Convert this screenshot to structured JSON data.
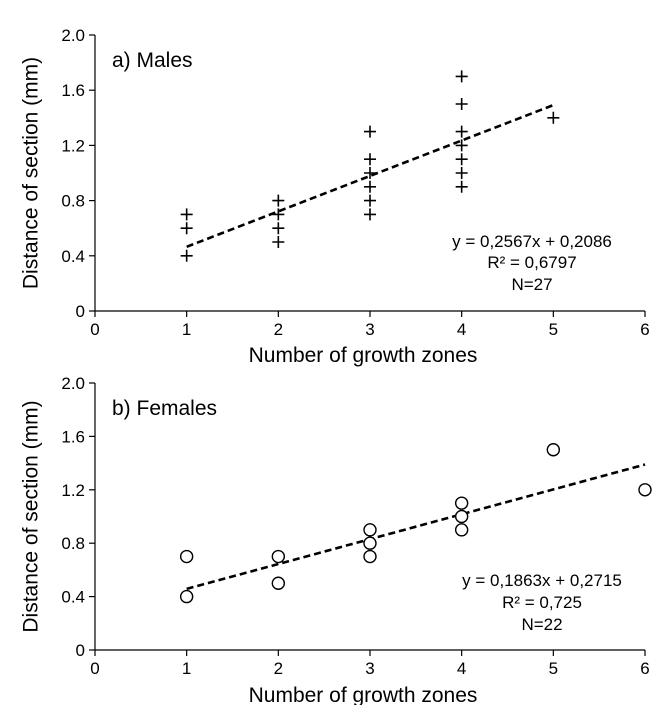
{
  "chart_data": [
    {
      "type": "scatter",
      "panel_label": "a) Males",
      "xlabel": "Number of growth zones",
      "ylabel": "Distance of section (mm)",
      "xlim": [
        0,
        6
      ],
      "ylim": [
        0,
        2.0
      ],
      "x_ticks": [
        "0",
        "1",
        "2",
        "3",
        "4",
        "5",
        "6"
      ],
      "y_ticks": [
        "0",
        "0.4",
        "0.8",
        "1.2",
        "1.6",
        "2.0"
      ],
      "marker": "plus",
      "points": [
        {
          "x": 1,
          "y": 0.4
        },
        {
          "x": 1,
          "y": 0.6
        },
        {
          "x": 1,
          "y": 0.7
        },
        {
          "x": 2,
          "y": 0.5
        },
        {
          "x": 2,
          "y": 0.6
        },
        {
          "x": 2,
          "y": 0.7
        },
        {
          "x": 2,
          "y": 0.8
        },
        {
          "x": 3,
          "y": 0.7
        },
        {
          "x": 3,
          "y": 0.8
        },
        {
          "x": 3,
          "y": 0.9
        },
        {
          "x": 3,
          "y": 1.0
        },
        {
          "x": 3,
          "y": 1.1
        },
        {
          "x": 3,
          "y": 1.3
        },
        {
          "x": 4,
          "y": 0.9
        },
        {
          "x": 4,
          "y": 1.0
        },
        {
          "x": 4,
          "y": 1.1
        },
        {
          "x": 4,
          "y": 1.2
        },
        {
          "x": 4,
          "y": 1.3
        },
        {
          "x": 4,
          "y": 1.5
        },
        {
          "x": 4,
          "y": 1.7
        },
        {
          "x": 5,
          "y": 1.4
        }
      ],
      "trendline": {
        "slope": 0.2567,
        "intercept": 0.2086,
        "x_from": 1,
        "x_to": 5
      },
      "annotations": [
        "y = 0,2567x + 0,2086",
        "R² = 0,6797",
        "N=27"
      ]
    },
    {
      "type": "scatter",
      "panel_label": "b) Females",
      "xlabel": "Number of growth zones",
      "ylabel": "Distance of section (mm)",
      "xlim": [
        0,
        6
      ],
      "ylim": [
        0,
        2.0
      ],
      "x_ticks": [
        "0",
        "1",
        "2",
        "3",
        "4",
        "5",
        "6"
      ],
      "y_ticks": [
        "0",
        "0.4",
        "0.8",
        "1.2",
        "1.6",
        "2.0"
      ],
      "marker": "circle",
      "points": [
        {
          "x": 1,
          "y": 0.4
        },
        {
          "x": 1,
          "y": 0.7
        },
        {
          "x": 2,
          "y": 0.5
        },
        {
          "x": 2,
          "y": 0.7
        },
        {
          "x": 3,
          "y": 0.7
        },
        {
          "x": 3,
          "y": 0.8
        },
        {
          "x": 3,
          "y": 0.9
        },
        {
          "x": 4,
          "y": 0.9
        },
        {
          "x": 4,
          "y": 1.0
        },
        {
          "x": 4,
          "y": 1.1
        },
        {
          "x": 5,
          "y": 1.5
        },
        {
          "x": 6,
          "y": 1.2
        }
      ],
      "trendline": {
        "slope": 0.1863,
        "intercept": 0.2715,
        "x_from": 1,
        "x_to": 6
      },
      "annotations": [
        "y = 0,1863x + 0,2715",
        "R² = 0,725",
        "N=22"
      ]
    }
  ]
}
